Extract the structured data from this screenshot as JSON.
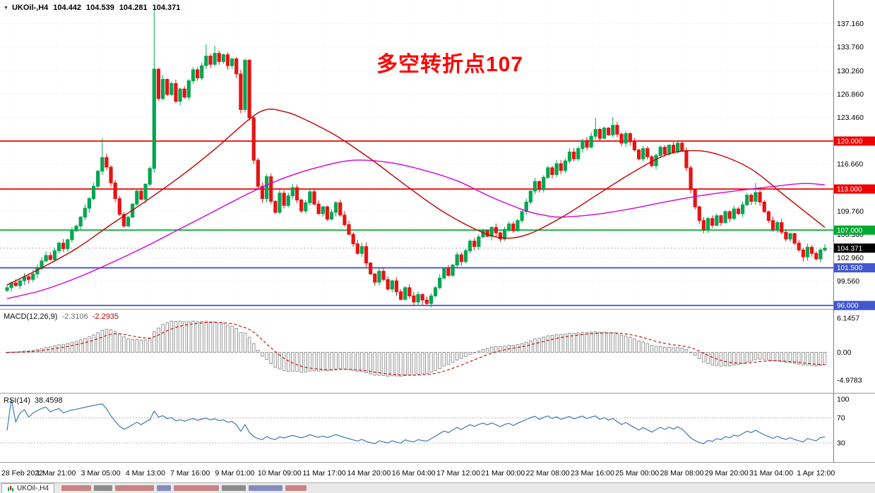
{
  "header": {
    "symbol": "UKOil-,H4",
    "open": "104.442",
    "high": "104.539",
    "low": "104.281",
    "close": "104.371"
  },
  "annotation": {
    "text": "多空转折点107",
    "color": "#ff0000"
  },
  "indicators": {
    "macd": {
      "label": "MACD(12,26,9)",
      "value_main": "-2.3106",
      "value_signal": "-2.2935",
      "axis": [
        {
          "value": 6.1457,
          "label": "6.1457"
        },
        {
          "value": 0,
          "label": "0.00"
        },
        {
          "value": -4.9783,
          "label": "-4.9783"
        }
      ]
    },
    "rsi": {
      "label": "RSI(14)",
      "value": "38.4598",
      "levels": [
        70,
        30
      ],
      "axis": [
        {
          "value": 100,
          "label": "100"
        },
        {
          "value": 70,
          "label": "70"
        },
        {
          "value": 30,
          "label": "30"
        }
      ]
    }
  },
  "price_axis": {
    "ticks": [
      {
        "value": 137.16,
        "label": "137.160"
      },
      {
        "value": 133.76,
        "label": "133.760"
      },
      {
        "value": 130.26,
        "label": "130.260"
      },
      {
        "value": 126.86,
        "label": "126.860"
      },
      {
        "value": 123.46,
        "label": "123.460"
      },
      {
        "value": 116.66,
        "label": "116.660"
      },
      {
        "value": 109.76,
        "label": "109.760"
      },
      {
        "value": 106.36,
        "label": "106.360"
      },
      {
        "value": 102.96,
        "label": "102.960"
      },
      {
        "value": 99.56,
        "label": "99.560"
      }
    ],
    "current": {
      "value": 104.371,
      "label": "104.371",
      "bg": "#000000"
    }
  },
  "tab_bar": {
    "tabs": [
      {
        "label": "UKOil-,H4"
      }
    ]
  },
  "colors": {
    "up": "#00a650",
    "down": "#e51414",
    "ma_fast": "#c00000",
    "ma_slow": "#d400d4",
    "macd_signal": "#c00000",
    "rsi_line": "#3a7abf",
    "annotation": "#ff0000"
  },
  "chart_data": {
    "type": "candlestick",
    "symbol": "UKOil-",
    "timeframe": "H4",
    "title_ohlc": {
      "open": 104.442,
      "high": 104.539,
      "low": 104.281,
      "close": 104.371
    },
    "price_range": [
      95.5,
      140.5
    ],
    "x_labels": [
      "28 Feb 2022",
      "1 Mar 21:00",
      "3 Mar 05:00",
      "4 Mar 13:00",
      "7 Mar 16:00",
      "9 Mar 01:00",
      "10 Mar 09:00",
      "11 Mar 17:00",
      "14 Mar 20:00",
      "16 Mar 04:00",
      "17 Mar 12:00",
      "21 Mar 00:00",
      "22 Mar 08:00",
      "23 Mar 16:00",
      "25 Mar 00:00",
      "28 Mar 08:00",
      "29 Mar 20:00",
      "31 Mar 04:00",
      "1 Apr 12:00"
    ],
    "first_open": 98.2,
    "closes": [
      98.6,
      99.3,
      98.9,
      99.6,
      100.2,
      99.8,
      100.6,
      101.4,
      102.5,
      103.3,
      102.7,
      104.0,
      105.1,
      104.3,
      105.6,
      106.9,
      107.6,
      108.9,
      110.2,
      111.6,
      113.4,
      115.6,
      117.6,
      116.2,
      113.9,
      111.6,
      109.3,
      107.6,
      108.9,
      110.8,
      112.7,
      111.5,
      113.7,
      116.0,
      130.5,
      126.2,
      129.0,
      126.8,
      128.4,
      125.8,
      127.6,
      126.4,
      128.8,
      130.4,
      129.2,
      131.0,
      132.4,
      131.2,
      132.8,
      131.6,
      132.6,
      131.0,
      132.0,
      129.8,
      124.6,
      131.8,
      123.4,
      117.2,
      113.4,
      111.6,
      114.8,
      111.2,
      109.6,
      112.4,
      110.6,
      112.0,
      113.2,
      111.4,
      109.8,
      111.0,
      112.6,
      110.8,
      109.4,
      110.4,
      108.6,
      109.6,
      111.0,
      109.2,
      107.8,
      106.4,
      105.0,
      103.6,
      104.6,
      102.2,
      100.6,
      99.4,
      101.0,
      99.8,
      98.4,
      99.6,
      98.0,
      96.9,
      98.6,
      97.4,
      96.5,
      97.6,
      96.8,
      96.3,
      97.4,
      98.6,
      100.0,
      101.4,
      100.4,
      101.9,
      103.4,
      102.4,
      104.0,
      105.4,
      104.6,
      106.0,
      106.9,
      106.1,
      107.4,
      106.6,
      105.7,
      107.1,
      107.9,
      106.9,
      108.4,
      109.7,
      111.1,
      112.7,
      114.1,
      112.9,
      114.7,
      116.1,
      115.1,
      116.7,
      115.7,
      117.1,
      118.4,
      117.4,
      118.9,
      120.1,
      119.1,
      120.7,
      121.7,
      120.4,
      121.9,
      120.9,
      122.3,
      121.0,
      119.7,
      121.1,
      119.9,
      118.7,
      117.4,
      118.9,
      117.7,
      116.4,
      117.9,
      119.1,
      118.1,
      119.4,
      118.4,
      119.7,
      118.6,
      116.1,
      112.9,
      110.4,
      108.4,
      107.1,
      108.7,
      107.7,
      109.1,
      108.1,
      109.7,
      108.7,
      110.1,
      109.4,
      110.7,
      112.1,
      111.2,
      112.5,
      111.1,
      109.7,
      108.4,
      107.1,
      108.1,
      106.7,
      105.7,
      106.5,
      105.1,
      104.1,
      103.1,
      104.5,
      103.6,
      102.8,
      104.1,
      104.371
    ],
    "wick_overrides": {
      "22": [
        120.4,
        null
      ],
      "34": [
        139.2,
        115.4
      ],
      "46": [
        134.1,
        null
      ],
      "48": [
        133.9,
        null
      ],
      "94": [
        null,
        96.05
      ],
      "96": [
        null,
        96.1
      ],
      "136": [
        123.4,
        null
      ],
      "140": [
        123.5,
        null
      ],
      "173": [
        113.9,
        null
      ],
      "184": [
        null,
        102.4
      ]
    },
    "h_levels": [
      {
        "price": 120.0,
        "label": "120.000",
        "color": "#f00000"
      },
      {
        "price": 113.0,
        "label": "113.000",
        "color": "#f00000"
      },
      {
        "price": 107.0,
        "label": "107.000",
        "color": "#00a832"
      },
      {
        "price": 101.5,
        "label": "101.500",
        "color": "#4256d0"
      },
      {
        "price": 96.0,
        "label": "96.000",
        "color": "#4256d0"
      }
    ],
    "ma_fast": {
      "color": "#c00000",
      "points": [
        [
          0,
          99.0
        ],
        [
          8,
          101.5
        ],
        [
          16,
          104.3
        ],
        [
          24,
          107.8
        ],
        [
          32,
          111.2
        ],
        [
          40,
          114.8
        ],
        [
          48,
          118.8
        ],
        [
          56,
          123.2
        ],
        [
          60,
          124.6
        ],
        [
          64,
          124.3
        ],
        [
          68,
          123.4
        ],
        [
          76,
          120.8
        ],
        [
          84,
          117.4
        ],
        [
          92,
          113.6
        ],
        [
          100,
          110.0
        ],
        [
          108,
          107.2
        ],
        [
          114,
          105.9
        ],
        [
          120,
          106.3
        ],
        [
          128,
          108.8
        ],
        [
          136,
          112.0
        ],
        [
          144,
          115.2
        ],
        [
          152,
          117.9
        ],
        [
          158,
          118.6
        ],
        [
          164,
          118.1
        ],
        [
          172,
          115.9
        ],
        [
          180,
          111.9
        ],
        [
          189,
          107.4
        ]
      ]
    },
    "ma_slow": {
      "color": "#d400d4",
      "points": [
        [
          0,
          97.0
        ],
        [
          8,
          98.2
        ],
        [
          16,
          100.0
        ],
        [
          24,
          102.2
        ],
        [
          32,
          104.6
        ],
        [
          40,
          107.2
        ],
        [
          48,
          109.8
        ],
        [
          56,
          112.4
        ],
        [
          64,
          114.6
        ],
        [
          72,
          116.2
        ],
        [
          80,
          117.2
        ],
        [
          88,
          116.9
        ],
        [
          96,
          115.8
        ],
        [
          104,
          114.2
        ],
        [
          112,
          111.8
        ],
        [
          120,
          109.8
        ],
        [
          124,
          109.2
        ],
        [
          128,
          108.9
        ],
        [
          136,
          109.3
        ],
        [
          144,
          110.1
        ],
        [
          152,
          111.1
        ],
        [
          160,
          112.0
        ],
        [
          168,
          112.7
        ],
        [
          176,
          113.3
        ],
        [
          184,
          113.8
        ],
        [
          189,
          113.6
        ]
      ]
    },
    "macd": {
      "params": [
        12,
        26,
        9
      ],
      "last_main": -2.3106,
      "last_signal": -2.2935,
      "axis_range": [
        -4.9783,
        6.1457
      ]
    },
    "rsi": {
      "period": 14,
      "last": 38.4598,
      "range": [
        0,
        100
      ],
      "levels": [
        30,
        70
      ]
    }
  }
}
